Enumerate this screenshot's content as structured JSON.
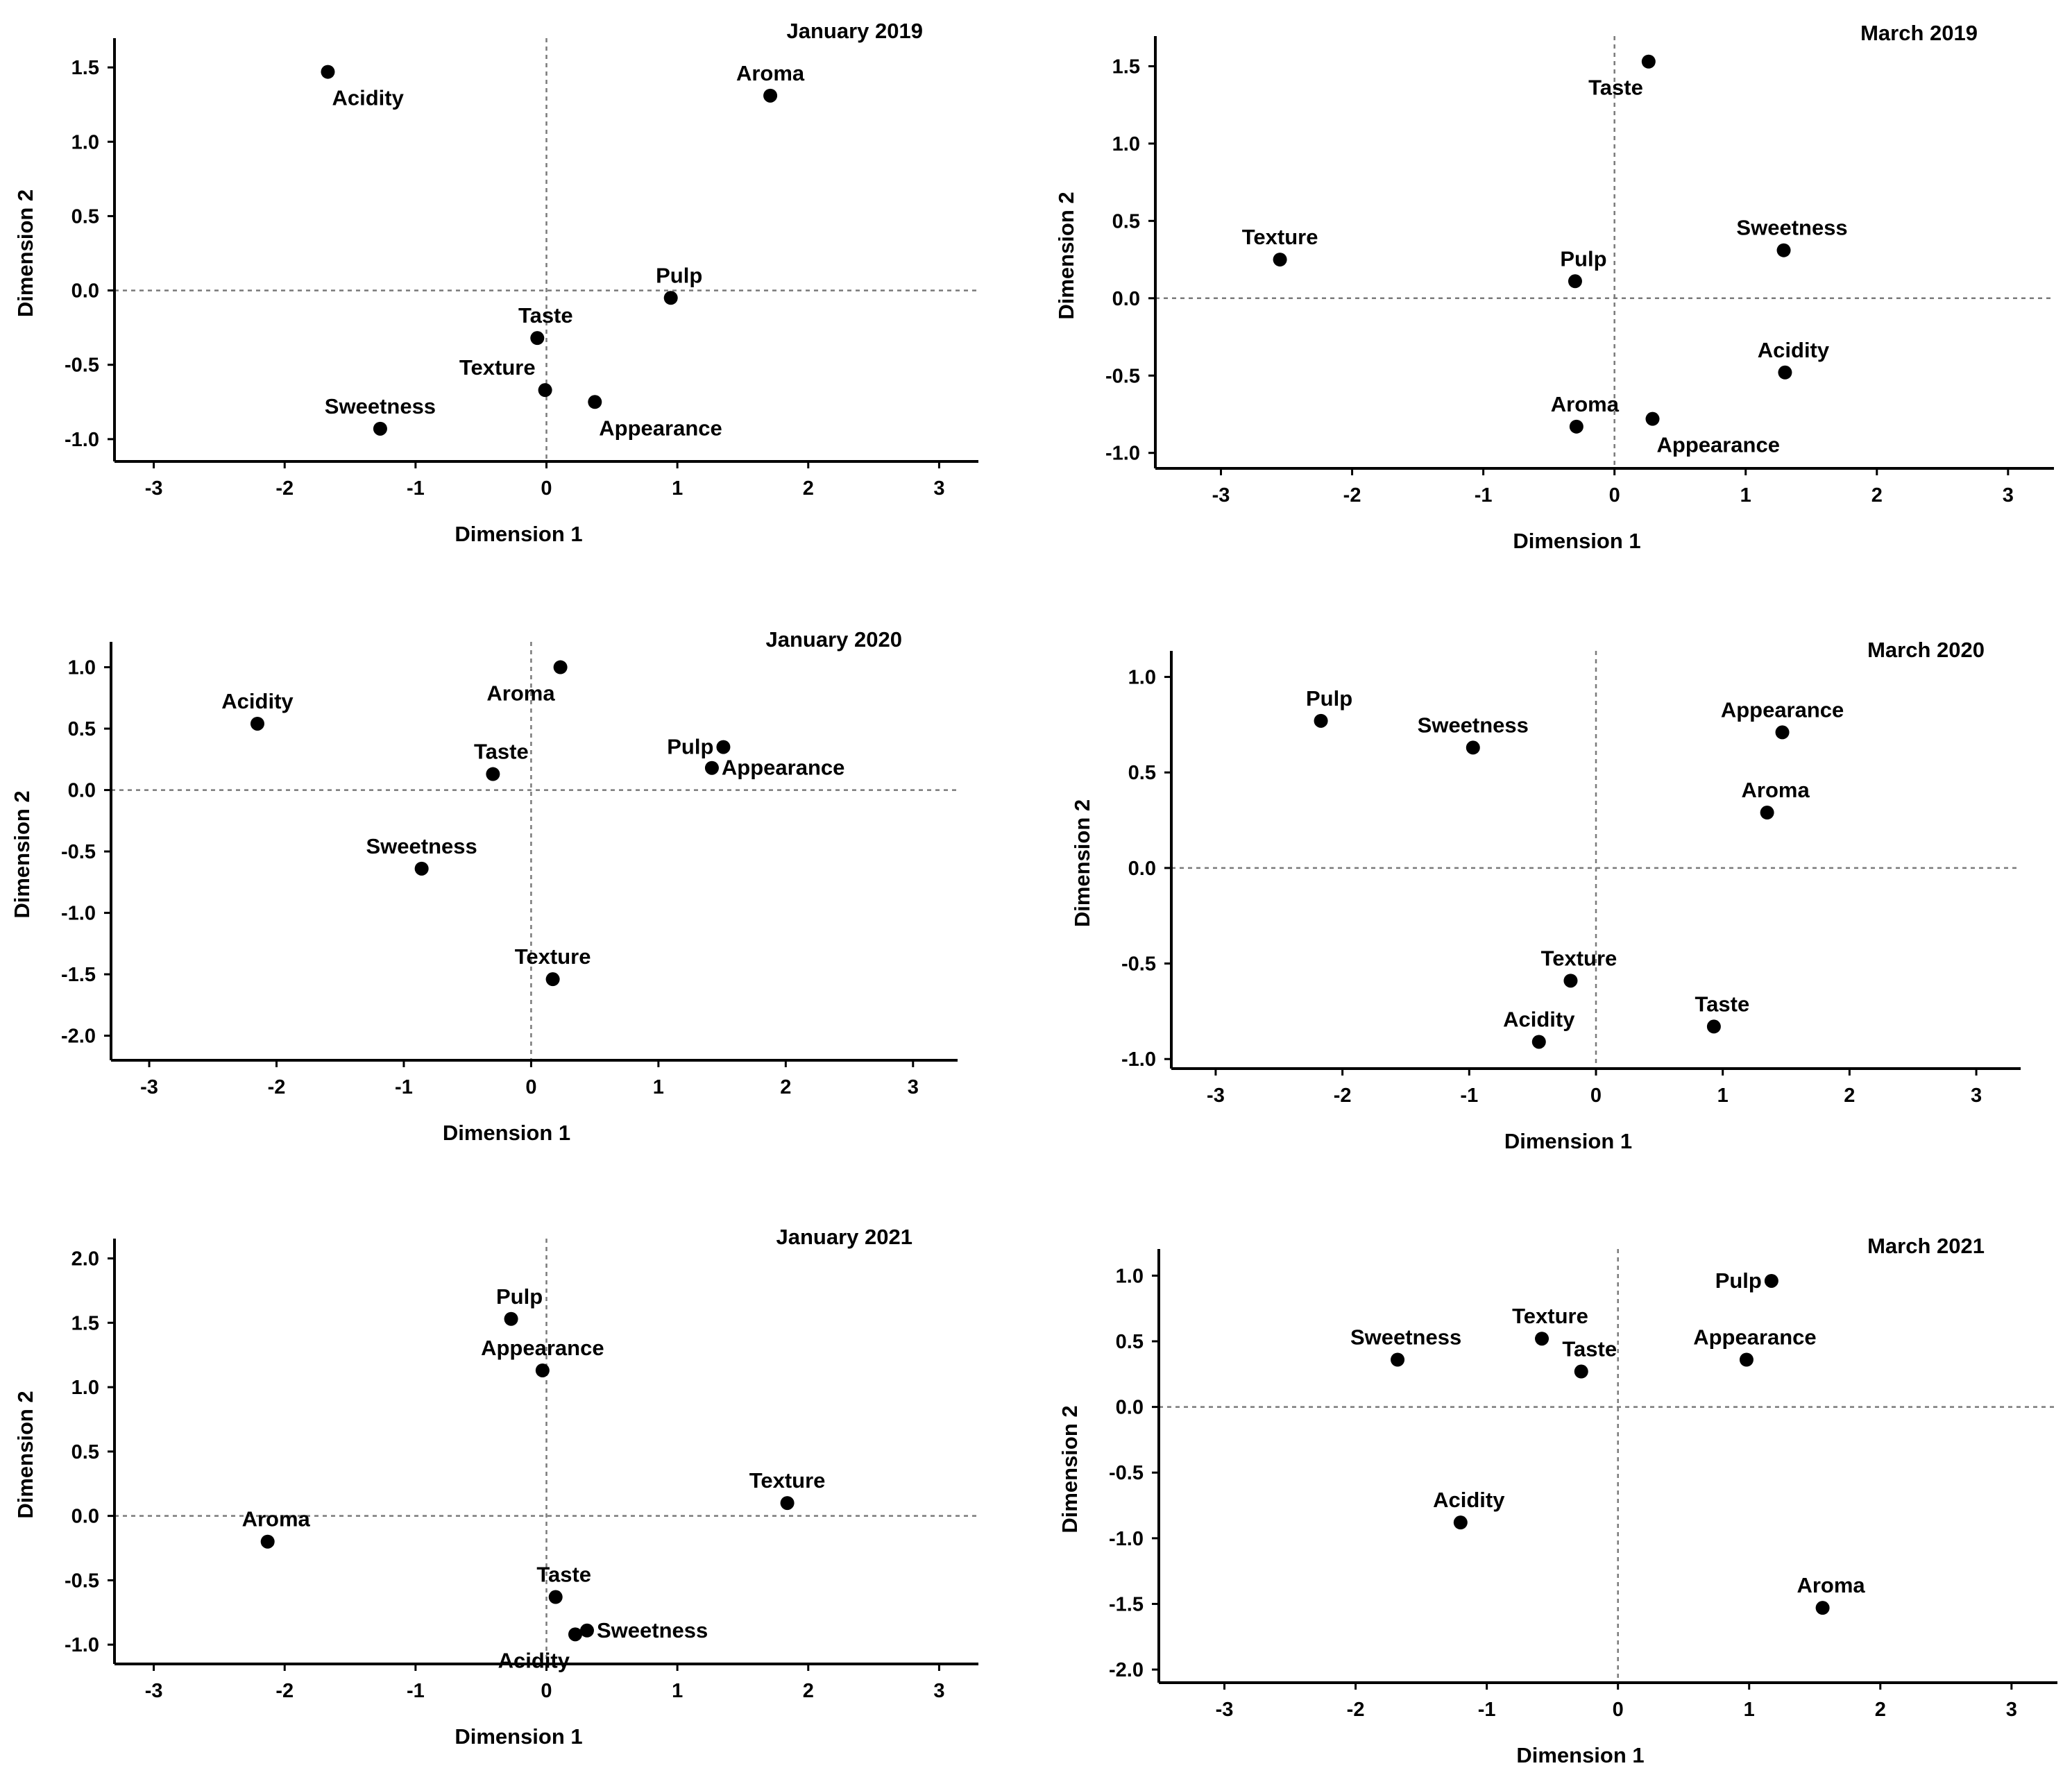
{
  "chart_data": [
    {
      "type": "scatter",
      "title": "January 2019",
      "xlabel": "Dimension 1",
      "ylabel": "Dimension 2",
      "xlim": [
        -3.3,
        3.3
      ],
      "ylim": [
        -1.15,
        1.65
      ],
      "xticks": [
        "-3",
        "-2",
        "-1",
        "0",
        "1",
        "2",
        "3"
      ],
      "yticks": [
        "-1.0",
        "-0.5",
        "0.0",
        "0.5",
        "1.0",
        "1.5"
      ],
      "points": [
        {
          "label": "Acidity",
          "x": -1.67,
          "y": 1.47,
          "pos": "br"
        },
        {
          "label": "Aroma",
          "x": 1.71,
          "y": 1.31,
          "pos": "t"
        },
        {
          "label": "Pulp",
          "x": 0.95,
          "y": -0.05,
          "pos": "tr"
        },
        {
          "label": "Taste",
          "x": -0.07,
          "y": -0.32,
          "pos": "tr"
        },
        {
          "label": "Texture",
          "x": -0.01,
          "y": -0.67,
          "pos": "tl"
        },
        {
          "label": "Appearance",
          "x": 0.37,
          "y": -0.75,
          "pos": "br"
        },
        {
          "label": "Sweetness",
          "x": -1.27,
          "y": -0.93,
          "pos": "t"
        }
      ]
    },
    {
      "type": "scatter",
      "title": "March 2019",
      "xlabel": "Dimension 1",
      "ylabel": "Dimension 2",
      "xlim": [
        -3.5,
        3.35
      ],
      "ylim": [
        -1.1,
        1.65
      ],
      "xticks": [
        "-3",
        "-2",
        "-1",
        "0",
        "1",
        "2",
        "3"
      ],
      "yticks": [
        "-1.0",
        "-0.5",
        "0.0",
        "0.5",
        "1.0",
        "1.5"
      ],
      "points": [
        {
          "label": "Taste",
          "x": 0.26,
          "y": 1.53,
          "pos": "bl"
        },
        {
          "label": "Texture",
          "x": -2.55,
          "y": 0.25,
          "pos": "t"
        },
        {
          "label": "Pulp",
          "x": -0.3,
          "y": 0.11,
          "pos": "tr"
        },
        {
          "label": "Sweetness",
          "x": 1.29,
          "y": 0.31,
          "pos": "tr"
        },
        {
          "label": "Acidity",
          "x": 1.3,
          "y": -0.48,
          "pos": "tr"
        },
        {
          "label": "Aroma",
          "x": -0.29,
          "y": -0.83,
          "pos": "tr"
        },
        {
          "label": "Appearance",
          "x": 0.29,
          "y": -0.78,
          "pos": "br"
        }
      ]
    },
    {
      "type": "scatter",
      "title": "January 2020",
      "xlabel": "Dimension 1",
      "ylabel": "Dimension 2",
      "xlim": [
        -3.3,
        3.35
      ],
      "ylim": [
        -2.2,
        1.15
      ],
      "xticks": [
        "-3",
        "-2",
        "-1",
        "0",
        "1",
        "2",
        "3"
      ],
      "yticks": [
        "-2.0",
        "-1.5",
        "-1.0",
        "-0.5",
        "0.0",
        "0.5",
        "1.0"
      ],
      "points": [
        {
          "label": "Acidity",
          "x": -2.15,
          "y": 0.54,
          "pos": "t"
        },
        {
          "label": "Aroma",
          "x": 0.23,
          "y": 1.0,
          "pos": "bl"
        },
        {
          "label": "Taste",
          "x": -0.3,
          "y": 0.13,
          "pos": "tr"
        },
        {
          "label": "Pulp",
          "x": 1.51,
          "y": 0.35,
          "pos": "l"
        },
        {
          "label": "Appearance",
          "x": 1.42,
          "y": 0.18,
          "pos": "r"
        },
        {
          "label": "Sweetness",
          "x": -0.86,
          "y": -0.64,
          "pos": "t"
        },
        {
          "label": "Texture",
          "x": 0.17,
          "y": -1.54,
          "pos": "t"
        }
      ]
    },
    {
      "type": "scatter",
      "title": "March 2020",
      "xlabel": "Dimension 1",
      "ylabel": "Dimension 2",
      "xlim": [
        -3.35,
        3.35
      ],
      "ylim": [
        -1.05,
        1.1
      ],
      "xticks": [
        "-3",
        "-2",
        "-1",
        "0",
        "1",
        "2",
        "3"
      ],
      "yticks": [
        "-1.0",
        "-0.5",
        "0.0",
        "0.5",
        "1.0"
      ],
      "points": [
        {
          "label": "Pulp",
          "x": -2.17,
          "y": 0.77,
          "pos": "tr"
        },
        {
          "label": "Sweetness",
          "x": -0.97,
          "y": 0.63,
          "pos": "t"
        },
        {
          "label": "Appearance",
          "x": 1.47,
          "y": 0.71,
          "pos": "t"
        },
        {
          "label": "Aroma",
          "x": 1.35,
          "y": 0.29,
          "pos": "tr"
        },
        {
          "label": "Texture",
          "x": -0.2,
          "y": -0.59,
          "pos": "tr"
        },
        {
          "label": "Taste",
          "x": 0.93,
          "y": -0.83,
          "pos": "tr"
        },
        {
          "label": "Acidity",
          "x": -0.45,
          "y": -0.91,
          "pos": "t"
        }
      ]
    },
    {
      "type": "scatter",
      "title": "January 2021",
      "xlabel": "Dimension 1",
      "ylabel": "Dimension 2",
      "xlim": [
        -3.3,
        3.3
      ],
      "ylim": [
        -1.15,
        2.1
      ],
      "xticks": [
        "-3",
        "-2",
        "-1",
        "0",
        "1",
        "2",
        "3"
      ],
      "yticks": [
        "-1.0",
        "-0.5",
        "0.0",
        "0.5",
        "1.0",
        "1.5",
        "2.0"
      ],
      "points": [
        {
          "label": "Pulp",
          "x": -0.27,
          "y": 1.53,
          "pos": "tr"
        },
        {
          "label": "Appearance",
          "x": -0.03,
          "y": 1.13,
          "pos": "t"
        },
        {
          "label": "Texture",
          "x": 1.84,
          "y": 0.1,
          "pos": "t"
        },
        {
          "label": "Aroma",
          "x": -2.13,
          "y": -0.2,
          "pos": "tr"
        },
        {
          "label": "Taste",
          "x": 0.07,
          "y": -0.63,
          "pos": "tr"
        },
        {
          "label": "Sweetness",
          "x": 0.31,
          "y": -0.89,
          "pos": "r"
        },
        {
          "label": "Acidity",
          "x": 0.22,
          "y": -0.92,
          "pos": "bl"
        }
      ]
    },
    {
      "type": "scatter",
      "title": "March 2021",
      "xlabel": "Dimension 1",
      "ylabel": "Dimension 2",
      "xlim": [
        -3.5,
        3.35
      ],
      "ylim": [
        -2.1,
        1.15
      ],
      "xticks": [
        "-3",
        "-2",
        "-1",
        "0",
        "1",
        "2",
        "3"
      ],
      "yticks": [
        "-2.0",
        "-1.5",
        "-1.0",
        "-0.5",
        "0.0",
        "0.5",
        "1.0"
      ],
      "points": [
        {
          "label": "Pulp",
          "x": 1.17,
          "y": 0.96,
          "pos": "l"
        },
        {
          "label": "Sweetness",
          "x": -1.68,
          "y": 0.36,
          "pos": "tr"
        },
        {
          "label": "Texture",
          "x": -0.58,
          "y": 0.52,
          "pos": "tr"
        },
        {
          "label": "Taste",
          "x": -0.28,
          "y": 0.27,
          "pos": "tr"
        },
        {
          "label": "Appearance",
          "x": 0.98,
          "y": 0.36,
          "pos": "tr"
        },
        {
          "label": "Acidity",
          "x": -1.2,
          "y": -0.88,
          "pos": "tr"
        },
        {
          "label": "Aroma",
          "x": 1.56,
          "y": -1.53,
          "pos": "tr"
        }
      ]
    }
  ]
}
